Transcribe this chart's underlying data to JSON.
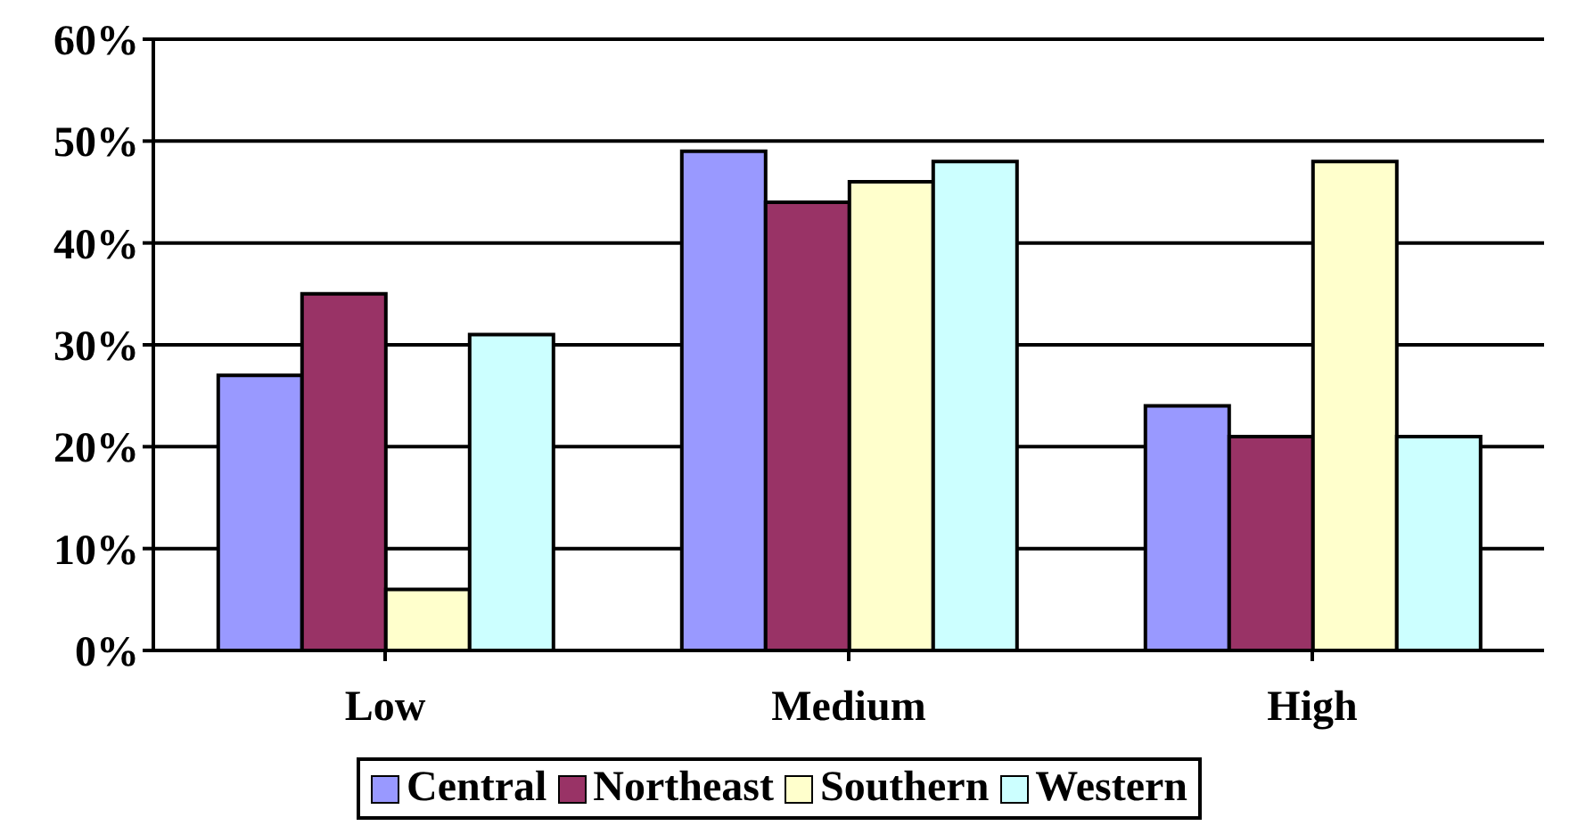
{
  "chart_data": {
    "type": "bar",
    "categories": [
      "Low",
      "Medium",
      "High"
    ],
    "series": [
      {
        "name": "Central",
        "color": "#9999ff",
        "values": [
          27,
          49,
          24
        ]
      },
      {
        "name": "Northeast",
        "color": "#993366",
        "values": [
          35,
          44,
          21
        ]
      },
      {
        "name": "Southern",
        "color": "#ffffcc",
        "values": [
          6,
          46,
          48
        ]
      },
      {
        "name": "Western",
        "color": "#ccffff",
        "values": [
          31,
          48,
          21
        ]
      }
    ],
    "ylim": [
      0,
      60
    ],
    "yticks": [
      {
        "value": 0,
        "label": "0%"
      },
      {
        "value": 10,
        "label": "10%"
      },
      {
        "value": 20,
        "label": "20%"
      },
      {
        "value": 30,
        "label": "30%"
      },
      {
        "value": 40,
        "label": "40%"
      },
      {
        "value": 50,
        "label": "50%"
      },
      {
        "value": 60,
        "label": "60%"
      }
    ],
    "grid": "y",
    "legend": "bottom"
  }
}
